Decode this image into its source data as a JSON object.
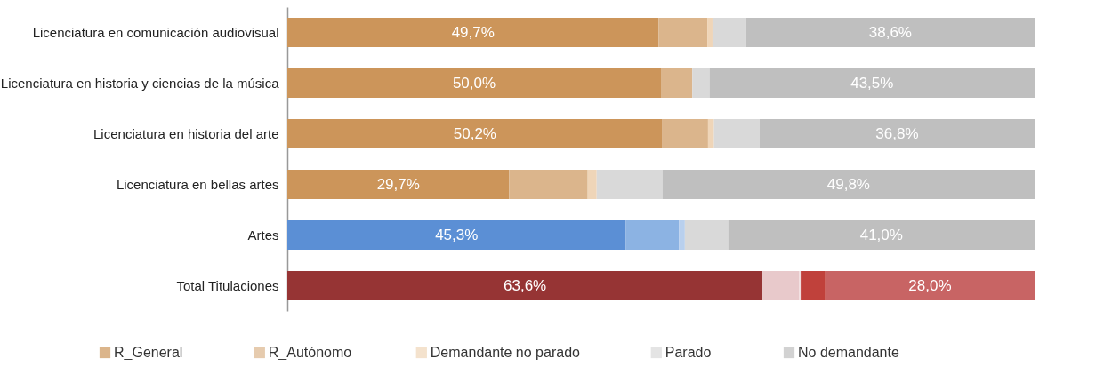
{
  "chart_data": {
    "type": "bar",
    "orientation": "horizontal",
    "stacked": true,
    "legend": "bottom",
    "categories": [
      "Licenciatura en comunicación audiovisual",
      "Licenciatura en historia y ciencias de la música",
      "Licenciatura en historia del arte",
      "Licenciatura en bellas artes",
      "Artes",
      "Total Titulaciones"
    ],
    "series": [
      {
        "name": "R_General",
        "color": "#cc955a",
        "colors": [
          "#cc955a",
          "#cc955a",
          "#cc955a",
          "#cc955a",
          "#5b8fd5",
          "#963434"
        ],
        "values": [
          49.7,
          50.0,
          50.2,
          29.7,
          45.3,
          63.6
        ],
        "value_labels": [
          "49,7%",
          "50,0%",
          "50,2%",
          "29,7%",
          "45,3%",
          "63,6%"
        ]
      },
      {
        "name": "R_Autónomo",
        "color": "#dbb58c",
        "colors": [
          "#dbb58c",
          "#dbb58c",
          "#dbb58c",
          "#dbb58c",
          "#8cb3e3",
          "#e8c9cb"
        ],
        "values": [
          6.5,
          4.2,
          6.1,
          10.5,
          7.1,
          4.9
        ],
        "value_labels": [
          null,
          null,
          null,
          null,
          null,
          null
        ]
      },
      {
        "name": "Demandante no parado",
        "color": "#efd5b8",
        "colors": [
          "#efd5b8",
          "#efd5b8",
          "#efd5b8",
          "#efd5b8",
          "#b9d0ee",
          "#f0dcdc"
        ],
        "values": [
          0.7,
          0,
          0.8,
          1.2,
          0.8,
          0.2
        ],
        "value_labels": [
          null,
          null,
          null,
          null,
          null,
          null
        ]
      },
      {
        "name": "Parado",
        "color": "#d9d9d9",
        "colors": [
          "#d9d9d9",
          "#d9d9d9",
          "#d9d9d9",
          "#d9d9d9",
          "#d9d9d9",
          "#c0413b"
        ],
        "values": [
          4.5,
          2.3,
          6.1,
          8.8,
          5.8,
          3.3
        ],
        "value_labels": [
          null,
          null,
          null,
          null,
          null,
          null
        ]
      },
      {
        "name": "No demandante",
        "color": "#bfbfbf",
        "colors": [
          "#bfbfbf",
          "#bfbfbf",
          "#bfbfbf",
          "#bfbfbf",
          "#bfbfbf",
          "#c86464"
        ],
        "values": [
          38.6,
          43.5,
          36.8,
          49.8,
          41.0,
          28.0
        ],
        "value_labels": [
          "38,6%",
          "43,5%",
          "36,8%",
          "49,8%",
          "41,0%",
          "28,0%"
        ]
      }
    ]
  }
}
